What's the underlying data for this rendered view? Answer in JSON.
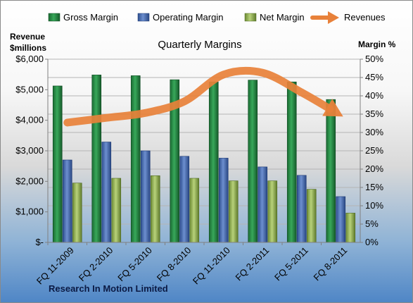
{
  "chart_data": {
    "type": "bar",
    "title": "Quarterly Margins",
    "footer": "Research In Motion Limited",
    "categories": [
      "FQ 11-2009",
      "FQ 2-2010",
      "FQ 5-2010",
      "FQ 8-2010",
      "FQ 11-2010",
      "FQ 2-2011",
      "FQ 5-2011",
      "FQ 8-2011"
    ],
    "left_axis": {
      "label_line1": "Revenue",
      "label_line2": "$millions",
      "ylim": [
        0,
        6000
      ],
      "ticks": [
        "$-",
        "$1,000",
        "$2,000",
        "$3,000",
        "$4,000",
        "$5,000",
        "$6,000"
      ]
    },
    "right_axis": {
      "label": "Margin %",
      "ylim": [
        0,
        50
      ],
      "ticks": [
        "0%",
        "5%",
        "10%",
        "15%",
        "20%",
        "25%",
        "30%",
        "35%",
        "40%",
        "45%",
        "50%"
      ]
    },
    "series": [
      {
        "name": "Gross Margin",
        "axis": "right",
        "color": "#1e7a3c",
        "values": [
          42.7,
          45.7,
          45.5,
          44.4,
          43.8,
          44.3,
          43.8,
          39.0
        ]
      },
      {
        "name": "Operating Margin",
        "axis": "right",
        "color": "#3a5fa8",
        "values": [
          22.5,
          27.4,
          25.0,
          23.5,
          23.0,
          20.6,
          18.3,
          12.5
        ]
      },
      {
        "name": "Net Margin",
        "axis": "right",
        "color": "#8aaa48",
        "values": [
          16.2,
          17.5,
          18.2,
          17.5,
          16.8,
          16.8,
          14.5,
          8.0
        ]
      },
      {
        "name": "Revenues",
        "axis": "left",
        "type": "line-arrow",
        "color": "#e8813a",
        "values": [
          3924,
          4080,
          4240,
          4620,
          5495,
          5556,
          4909,
          4168
        ]
      }
    ],
    "legend": {
      "position": "top"
    },
    "grid": true
  }
}
